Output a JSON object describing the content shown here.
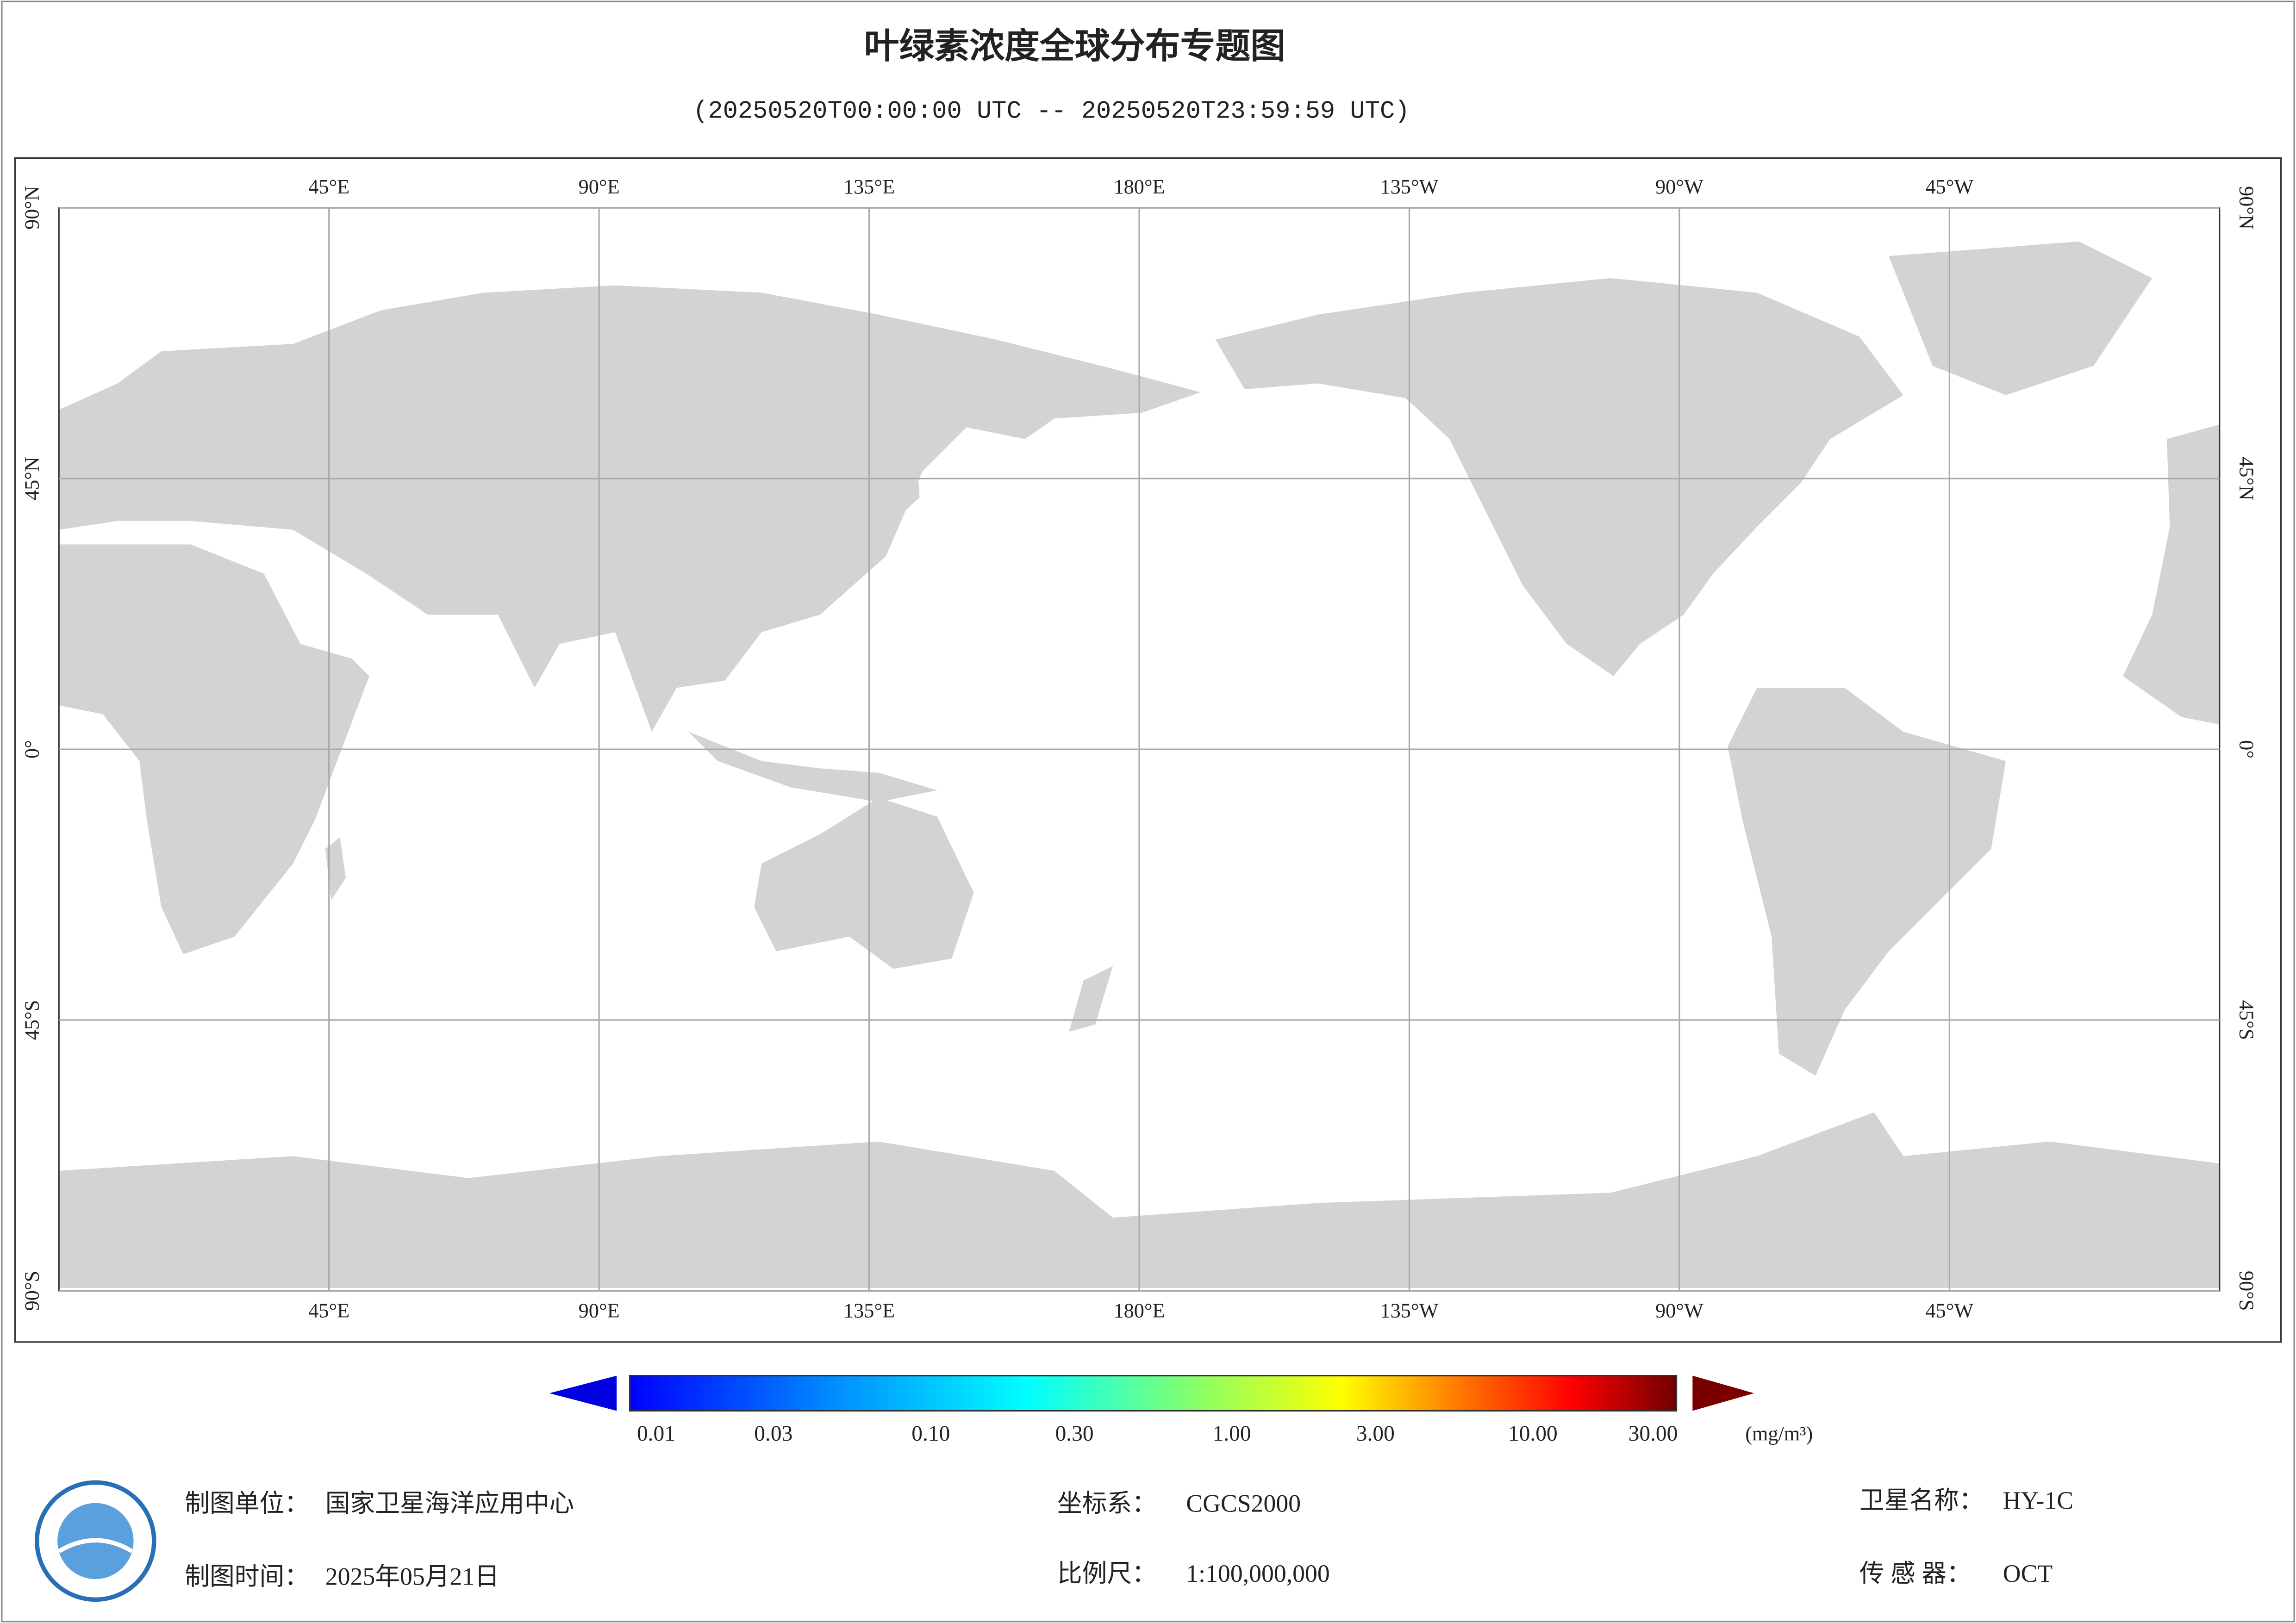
{
  "header": {
    "title": "叶绿素浓度全球分布专题图",
    "subtitle": "(20250520T00:00:00 UTC -- 20250520T23:59:59 UTC)"
  },
  "map": {
    "lonlim": [
      0,
      360
    ],
    "latlim": [
      -90,
      90
    ],
    "lon_ticks": [
      {
        "value": 45,
        "label": "45°E"
      },
      {
        "value": 90,
        "label": "90°E"
      },
      {
        "value": 135,
        "label": "135°E"
      },
      {
        "value": 180,
        "label": "180°E"
      },
      {
        "value": 225,
        "label": "135°W"
      },
      {
        "value": 270,
        "label": "90°W"
      },
      {
        "value": 315,
        "label": "45°W"
      }
    ],
    "lat_ticks": [
      {
        "value": 90,
        "label": "90°N"
      },
      {
        "value": 45,
        "label": "45°N"
      },
      {
        "value": 0,
        "label": "0°"
      },
      {
        "value": -45,
        "label": "45°S"
      },
      {
        "value": -90,
        "label": "90°S"
      }
    ]
  },
  "colorbar": {
    "log": true,
    "lim": [
      0.01,
      30
    ],
    "unit": "(mg/m³)",
    "ticks": [
      0.01,
      0.03,
      {
        "value": 0.1,
        "label": "0.10"
      },
      {
        "value": 0.3,
        "label": "0.30"
      },
      {
        "value": 1,
        "label": "1.00"
      },
      {
        "value": 3,
        "label": "3.00"
      },
      {
        "value": 10,
        "label": "10.00"
      },
      {
        "value": 30,
        "label": "30.00"
      }
    ]
  },
  "footer": {
    "unit": {
      "label": "制图单位：",
      "value": "国家卫星海洋应用中心"
    },
    "time": {
      "label": "制图时间：",
      "value": "2025年05月21日"
    },
    "crs": {
      "label": "坐标系：",
      "value": "CGCS2000"
    },
    "scale": {
      "label": "比例尺：",
      "value": "1:100,000,000"
    },
    "satellite": {
      "label": "卫星名称：",
      "value": "HY-1C"
    },
    "sensor": {
      "label": "传 感 器：",
      "value": "OCT"
    }
  }
}
